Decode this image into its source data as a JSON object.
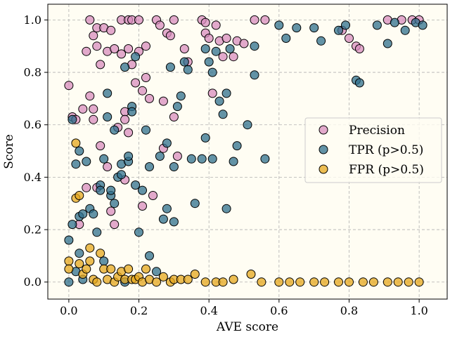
{
  "chart_data": {
    "type": "scatter",
    "title": "",
    "xlabel": "AVE score",
    "ylabel": "Score",
    "xlim": [
      -0.06,
      1.08
    ],
    "ylim": [
      -0.065,
      1.06
    ],
    "xticks": [
      0.0,
      0.2,
      0.4,
      0.6,
      0.8,
      1.0
    ],
    "yticks": [
      0.0,
      0.2,
      0.4,
      0.6,
      0.8,
      1.0
    ],
    "xtick_labels": [
      "0.0",
      "0.2",
      "0.4",
      "0.6",
      "0.8",
      "1.0"
    ],
    "ytick_labels": [
      "0.0",
      "0.2",
      "0.4",
      "0.6",
      "0.8",
      "1.0"
    ],
    "grid": true,
    "legend_position": "right",
    "background": "#fffdf3",
    "series": [
      {
        "name": "Precision",
        "color": "#d88cbd",
        "points": [
          [
            0.0,
            0.75
          ],
          [
            0.01,
            0.63
          ],
          [
            0.02,
            0.62
          ],
          [
            0.03,
            0.22
          ],
          [
            0.04,
            0.66
          ],
          [
            0.05,
            0.88
          ],
          [
            0.05,
            0.36
          ],
          [
            0.06,
            1.0
          ],
          [
            0.06,
            0.71
          ],
          [
            0.07,
            0.94
          ],
          [
            0.07,
            0.66
          ],
          [
            0.07,
            0.62
          ],
          [
            0.08,
            0.97
          ],
          [
            0.08,
            0.9
          ],
          [
            0.08,
            0.36
          ],
          [
            0.09,
            0.83
          ],
          [
            0.09,
            0.52
          ],
          [
            0.1,
            0.97
          ],
          [
            0.11,
            0.88
          ],
          [
            0.11,
            0.44
          ],
          [
            0.12,
            0.96
          ],
          [
            0.12,
            0.27
          ],
          [
            0.13,
            0.89
          ],
          [
            0.13,
            0.22
          ],
          [
            0.14,
            0.59
          ],
          [
            0.15,
            1.0
          ],
          [
            0.15,
            0.87
          ],
          [
            0.16,
            0.65
          ],
          [
            0.16,
            0.62
          ],
          [
            0.16,
            0.39
          ],
          [
            0.17,
            1.0
          ],
          [
            0.17,
            0.89
          ],
          [
            0.17,
            0.57
          ],
          [
            0.18,
            1.0
          ],
          [
            0.18,
            0.83
          ],
          [
            0.19,
            0.76
          ],
          [
            0.2,
            1.0
          ],
          [
            0.2,
            0.88
          ],
          [
            0.21,
            0.29
          ],
          [
            0.21,
            0.73
          ],
          [
            0.22,
            0.9
          ],
          [
            0.22,
            0.78
          ],
          [
            0.23,
            0.7
          ],
          [
            0.24,
            0.33
          ],
          [
            0.25,
            1.0
          ],
          [
            0.26,
            0.98
          ],
          [
            0.27,
            0.69
          ],
          [
            0.27,
            0.51
          ],
          [
            0.28,
            0.95
          ],
          [
            0.29,
            0.94
          ],
          [
            0.3,
            1.0
          ],
          [
            0.3,
            0.63
          ],
          [
            0.31,
            0.48
          ],
          [
            0.33,
            0.89
          ],
          [
            0.34,
            0.84
          ],
          [
            0.38,
            1.0
          ],
          [
            0.39,
            0.99
          ],
          [
            0.39,
            0.95
          ],
          [
            0.4,
            0.93
          ],
          [
            0.41,
            0.72
          ],
          [
            0.42,
            0.98
          ],
          [
            0.43,
            0.92
          ],
          [
            0.44,
            0.86
          ],
          [
            0.45,
            0.93
          ],
          [
            0.47,
            0.86
          ],
          [
            0.48,
            0.92
          ],
          [
            0.5,
            0.91
          ],
          [
            0.53,
            1.0
          ],
          [
            0.56,
            1.0
          ],
          [
            0.78,
            0.96
          ],
          [
            0.8,
            0.93
          ],
          [
            0.82,
            0.9
          ],
          [
            0.83,
            0.89
          ],
          [
            0.91,
            1.0
          ],
          [
            0.95,
            1.0
          ],
          [
            0.98,
            1.0
          ],
          [
            1.0,
            1.0
          ]
        ]
      },
      {
        "name": "TPR (p>0.5)",
        "color": "#2f6f8c",
        "points": [
          [
            0.0,
            0.16
          ],
          [
            0.0,
            0.0
          ],
          [
            0.01,
            0.22
          ],
          [
            0.01,
            0.62
          ],
          [
            0.02,
            0.45
          ],
          [
            0.02,
            0.04
          ],
          [
            0.03,
            0.5
          ],
          [
            0.03,
            0.25
          ],
          [
            0.03,
            0.11
          ],
          [
            0.04,
            0.26
          ],
          [
            0.04,
            0.01
          ],
          [
            0.05,
            0.46
          ],
          [
            0.06,
            0.28
          ],
          [
            0.07,
            0.26
          ],
          [
            0.08,
            0.19
          ],
          [
            0.09,
            0.37
          ],
          [
            0.09,
            0.35
          ],
          [
            0.1,
            0.47
          ],
          [
            0.1,
            0.08
          ],
          [
            0.11,
            0.63
          ],
          [
            0.11,
            0.72
          ],
          [
            0.12,
            0.33
          ],
          [
            0.12,
            0.35
          ],
          [
            0.13,
            0.3
          ],
          [
            0.13,
            0.58
          ],
          [
            0.14,
            0.4
          ],
          [
            0.15,
            0.41
          ],
          [
            0.15,
            0.45
          ],
          [
            0.16,
            0.82
          ],
          [
            0.16,
            0.0
          ],
          [
            0.17,
            0.46
          ],
          [
            0.17,
            0.48
          ],
          [
            0.18,
            0.67
          ],
          [
            0.18,
            0.65
          ],
          [
            0.19,
            0.86
          ],
          [
            0.19,
            0.37
          ],
          [
            0.2,
            0.19
          ],
          [
            0.21,
            0.35
          ],
          [
            0.22,
            0.58
          ],
          [
            0.23,
            0.1
          ],
          [
            0.23,
            0.44
          ],
          [
            0.25,
            0.04
          ],
          [
            0.26,
            0.48
          ],
          [
            0.27,
            0.24
          ],
          [
            0.28,
            0.53
          ],
          [
            0.28,
            0.28
          ],
          [
            0.29,
            0.82
          ],
          [
            0.3,
            0.44
          ],
          [
            0.3,
            0.23
          ],
          [
            0.31,
            0.67
          ],
          [
            0.32,
            0.71
          ],
          [
            0.33,
            0.84
          ],
          [
            0.34,
            0.81
          ],
          [
            0.35,
            0.47
          ],
          [
            0.36,
            0.3
          ],
          [
            0.38,
            0.47
          ],
          [
            0.39,
            0.55
          ],
          [
            0.39,
            0.89
          ],
          [
            0.4,
            0.84
          ],
          [
            0.41,
            0.8
          ],
          [
            0.41,
            0.47
          ],
          [
            0.42,
            0.88
          ],
          [
            0.43,
            0.69
          ],
          [
            0.44,
            0.64
          ],
          [
            0.45,
            0.28
          ],
          [
            0.45,
            0.72
          ],
          [
            0.46,
            0.89
          ],
          [
            0.47,
            0.46
          ],
          [
            0.48,
            0.52
          ],
          [
            0.51,
            0.6
          ],
          [
            0.53,
            0.79
          ],
          [
            0.53,
            0.9
          ],
          [
            0.56,
            0.47
          ],
          [
            0.6,
            0.98
          ],
          [
            0.62,
            0.93
          ],
          [
            0.65,
            0.97
          ],
          [
            0.7,
            0.97
          ],
          [
            0.72,
            0.92
          ],
          [
            0.77,
            0.96
          ],
          [
            0.79,
            0.98
          ],
          [
            0.82,
            0.77
          ],
          [
            0.83,
            0.76
          ],
          [
            0.88,
            0.98
          ],
          [
            0.91,
            0.91
          ],
          [
            0.93,
            0.99
          ],
          [
            0.96,
            0.96
          ],
          [
            0.99,
            0.99
          ],
          [
            1.01,
            0.98
          ]
        ]
      },
      {
        "name": "FPR (p>0.5)",
        "color": "#e6a71c",
        "points": [
          [
            0.0,
            0.08
          ],
          [
            0.0,
            0.05
          ],
          [
            0.02,
            0.53
          ],
          [
            0.02,
            0.32
          ],
          [
            0.03,
            0.33
          ],
          [
            0.03,
            0.07
          ],
          [
            0.04,
            0.03
          ],
          [
            0.05,
            0.05
          ],
          [
            0.06,
            0.13
          ],
          [
            0.06,
            0.08
          ],
          [
            0.07,
            0.01
          ],
          [
            0.08,
            0.0
          ],
          [
            0.09,
            0.11
          ],
          [
            0.1,
            0.05
          ],
          [
            0.11,
            0.01
          ],
          [
            0.12,
            0.05
          ],
          [
            0.13,
            0.0
          ],
          [
            0.14,
            0.02
          ],
          [
            0.15,
            0.04
          ],
          [
            0.16,
            0.01
          ],
          [
            0.17,
            0.05
          ],
          [
            0.18,
            0.01
          ],
          [
            0.19,
            0.01
          ],
          [
            0.2,
            0.02
          ],
          [
            0.21,
            0.0
          ],
          [
            0.22,
            0.05
          ],
          [
            0.23,
            0.01
          ],
          [
            0.25,
            0.0
          ],
          [
            0.27,
            0.02
          ],
          [
            0.29,
            0.0
          ],
          [
            0.3,
            0.01
          ],
          [
            0.32,
            0.01
          ],
          [
            0.34,
            0.01
          ],
          [
            0.36,
            0.03
          ],
          [
            0.39,
            0.0
          ],
          [
            0.42,
            0.0
          ],
          [
            0.44,
            0.0
          ],
          [
            0.47,
            0.01
          ],
          [
            0.52,
            0.03
          ],
          [
            0.55,
            0.0
          ],
          [
            0.6,
            0.0
          ],
          [
            0.63,
            0.0
          ],
          [
            0.66,
            0.0
          ],
          [
            0.7,
            0.0
          ],
          [
            0.73,
            0.0
          ],
          [
            0.77,
            0.0
          ],
          [
            0.8,
            0.0
          ],
          [
            0.84,
            0.0
          ],
          [
            0.87,
            0.0
          ],
          [
            0.91,
            0.0
          ],
          [
            0.94,
            0.0
          ],
          [
            0.97,
            0.0
          ],
          [
            1.0,
            0.0
          ]
        ]
      }
    ]
  }
}
